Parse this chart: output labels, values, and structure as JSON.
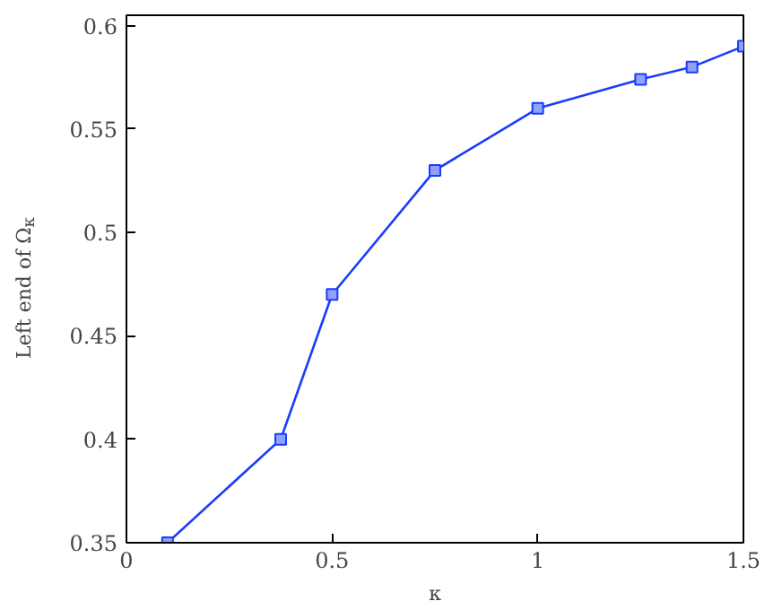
{
  "chart_data": {
    "type": "line",
    "xlabel": "κ",
    "ylabel": "Left end of Ω$_{κ}$",
    "x": [
      0.1,
      0.375,
      0.5,
      0.75,
      1.0,
      1.25,
      1.375,
      1.5
    ],
    "series": [
      {
        "color": "#1a3cff",
        "values": [
          0.35,
          0.4,
          0.47,
          0.53,
          0.56,
          0.574,
          0.58,
          0.59
        ]
      }
    ],
    "xlim": [
      0,
      1.5
    ],
    "ylim": [
      0.35,
      0.605
    ],
    "xticks": [
      0,
      0.5,
      1,
      1.5
    ],
    "yticks": [
      0.35,
      0.4,
      0.45,
      0.5,
      0.55,
      0.6
    ],
    "marker": "square",
    "line_style": "solid",
    "grid": false
  }
}
